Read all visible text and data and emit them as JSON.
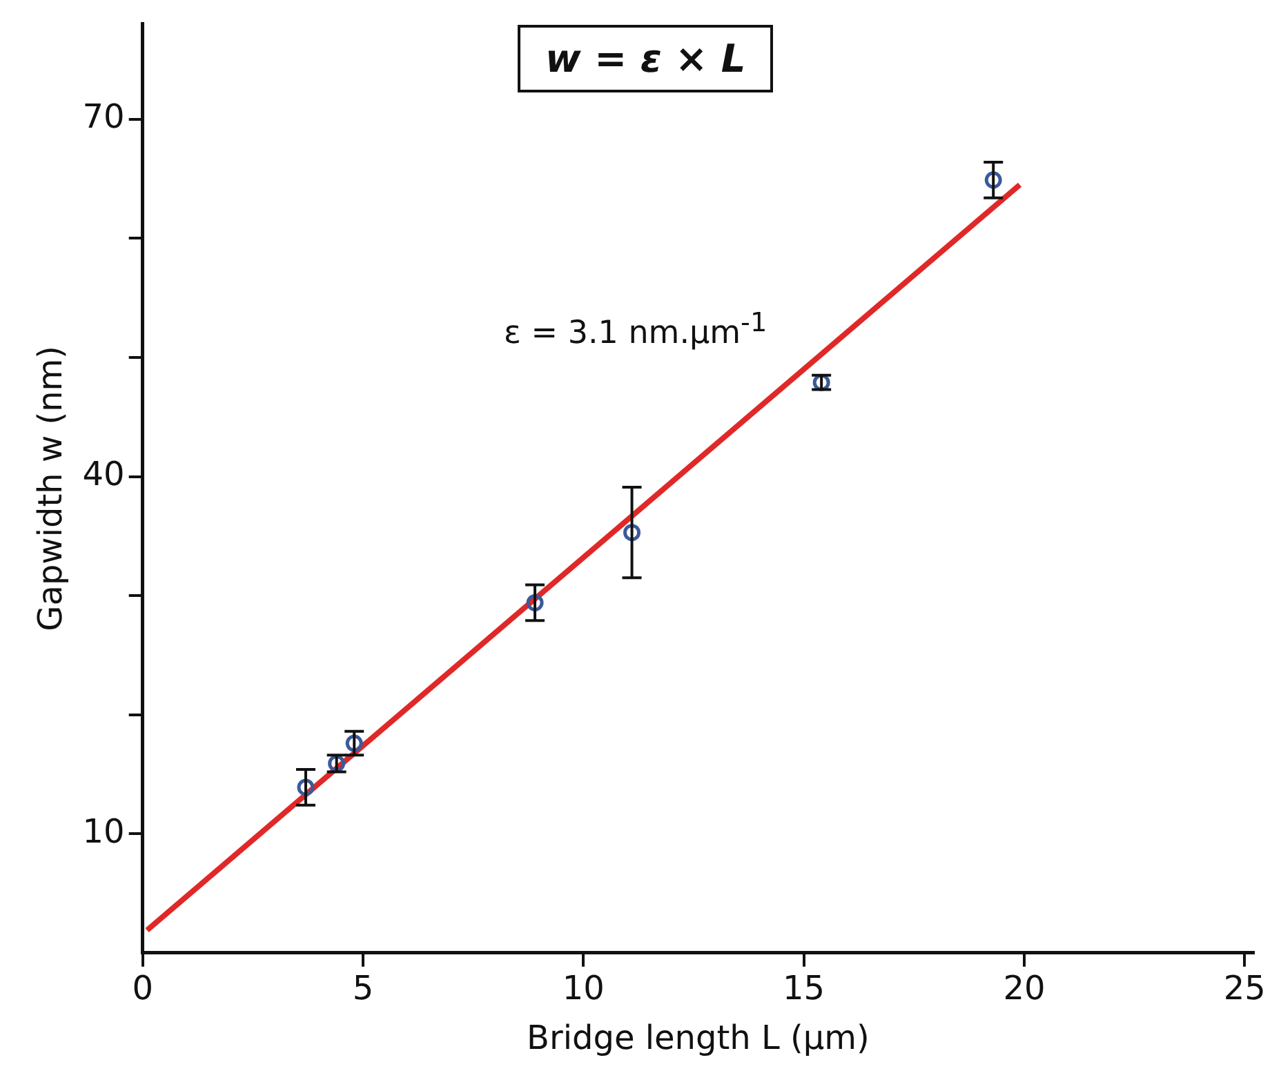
{
  "chart_data": {
    "type": "scatter",
    "xlabel": "Bridge length L (µm)",
    "ylabel": "Gapwidth w (nm)",
    "xlim": [
      0,
      25.2
    ],
    "ylim": [
      0,
      78
    ],
    "xticks": [
      0,
      5,
      10,
      15,
      20,
      25
    ],
    "yticks": [
      10,
      {
        "value": 20,
        "label": null
      },
      {
        "value": 30,
        "label": null
      },
      40,
      {
        "value": 50,
        "label": null
      },
      {
        "value": 60,
        "label": null
      },
      70
    ],
    "grid": false,
    "legend": false,
    "marker": "circle",
    "series": [
      {
        "color": "#3b5a9a",
        "x": [
          3.7,
          4.4,
          4.8,
          8.9,
          11.1,
          15.4,
          19.3
        ],
        "values": [
          13.9,
          15.9,
          17.6,
          29.4,
          35.3,
          47.9,
          64.9
        ],
        "errors": [
          1.5,
          0.7,
          1,
          1.5,
          3.8,
          0.6,
          1.5
        ]
      },
      {
        "type": "line",
        "color": "#e02828",
        "x": [
          0.1,
          19.9
        ],
        "values": [
          1.9,
          64.5
        ],
        "marker": "none",
        "line_style": "solid"
      }
    ],
    "annotations": [
      "w = ε × L",
      "ε = 3.1 nm.µm$^{-1}$"
    ]
  }
}
